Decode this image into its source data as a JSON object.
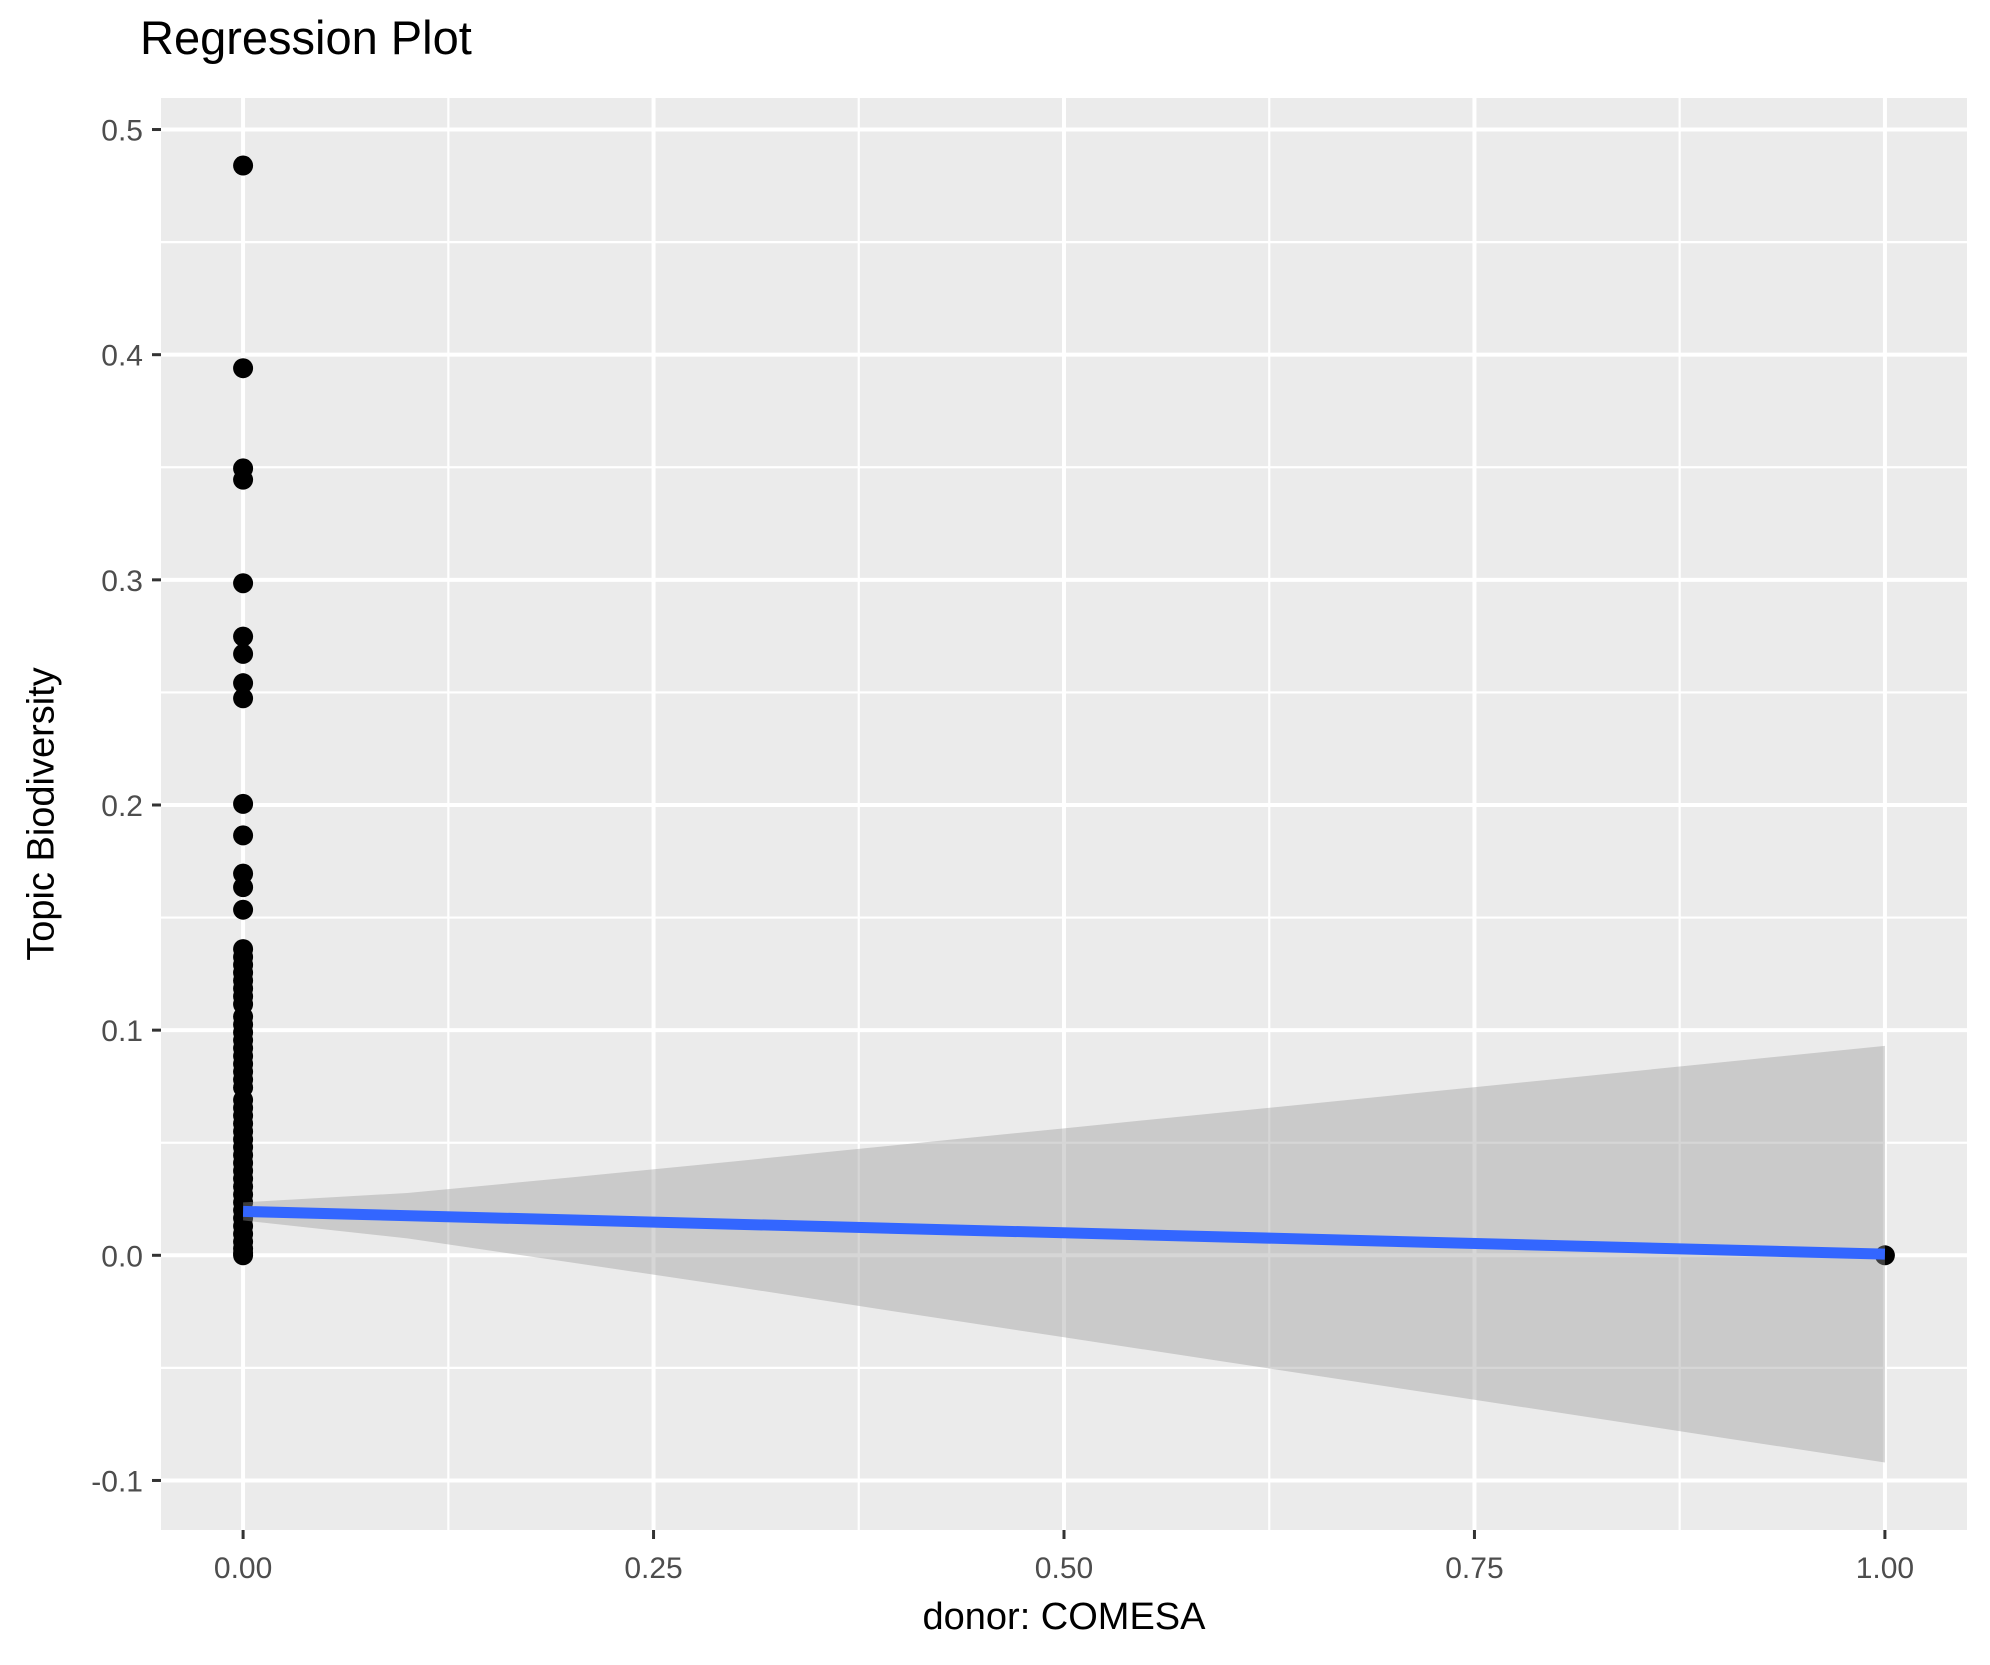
{
  "chart_data": {
    "type": "scatter",
    "title": "Regression Plot",
    "xlabel": "donor: COMESA",
    "ylabel": "Topic Biodiversity",
    "xlim": [
      -0.05,
      1.05
    ],
    "ylim": [
      -0.122,
      0.514
    ],
    "x_ticks": [
      {
        "value": 0.0,
        "label": "0.00"
      },
      {
        "value": 0.25,
        "label": "0.25"
      },
      {
        "value": 0.5,
        "label": "0.50"
      },
      {
        "value": 0.75,
        "label": "0.75"
      },
      {
        "value": 1.0,
        "label": "1.00"
      }
    ],
    "y_ticks": [
      {
        "value": -0.1,
        "label": "-0.1"
      },
      {
        "value": 0.0,
        "label": "0.0"
      },
      {
        "value": 0.1,
        "label": "0.1"
      },
      {
        "value": 0.2,
        "label": "0.2"
      },
      {
        "value": 0.3,
        "label": "0.3"
      },
      {
        "value": 0.4,
        "label": "0.4"
      },
      {
        "value": 0.5,
        "label": "0.5"
      }
    ],
    "x_minor_ticks": [
      0.125,
      0.375,
      0.625,
      0.875
    ],
    "y_minor_ticks": [
      -0.05,
      0.05,
      0.15,
      0.25,
      0.35,
      0.45
    ],
    "grid": {
      "major": true,
      "minor": true
    },
    "legend": "none",
    "points": [
      {
        "x": 0,
        "y_values": [
          0.484,
          0.394,
          0.3495,
          0.3445,
          0.2985,
          0.2748,
          0.2671,
          0.2541,
          0.2474,
          0.2005,
          0.1865,
          0.1695,
          0.1635,
          0.1535,
          0.136,
          0.1325,
          0.129,
          0.1255,
          0.122,
          0.1185,
          0.115,
          0.1115,
          0.106,
          0.1025,
          0.099,
          0.0955,
          0.092,
          0.0885,
          0.085,
          0.0815,
          0.078,
          0.0745,
          0.069,
          0.0655,
          0.062,
          0.0585,
          0.055,
          0.0515,
          0.048,
          0.0445,
          0.041,
          0.0375,
          0.034,
          0.0305,
          0.027,
          0.0235,
          0.02,
          0.0165,
          0.013,
          0.0095,
          0.006,
          0.003,
          0.001,
          0.0
        ]
      },
      {
        "x": 1,
        "y_values": [
          0.0
        ]
      }
    ],
    "regression_line": {
      "x": [
        0,
        1
      ],
      "y": [
        0.0195,
        0.0005
      ]
    },
    "confidence_ribbon": {
      "x": [
        0.0,
        0.1,
        0.2,
        0.3,
        0.4,
        0.5,
        0.6,
        0.7,
        0.8,
        0.9,
        1.0
      ],
      "upper": [
        0.0235,
        0.0277,
        0.0346,
        0.0418,
        0.0491,
        0.0564,
        0.0637,
        0.071,
        0.0783,
        0.0857,
        0.093
      ],
      "lower": [
        0.0155,
        0.0075,
        -0.0032,
        -0.014,
        -0.0253,
        -0.0364,
        -0.0475,
        -0.0586,
        -0.0697,
        -0.0809,
        -0.092
      ]
    },
    "style": {
      "panel_bg": "#EBEBEB",
      "grid_color": "#FFFFFF",
      "point_color": "#000000",
      "point_radius": 10,
      "line_color": "#3366FF",
      "line_width": 11,
      "ribbon_fill": "rgba(153,153,153,0.40)",
      "tick_label_color": "#4D4D4D",
      "tick_mark_color": "#333333",
      "title_color": "#000000"
    }
  }
}
